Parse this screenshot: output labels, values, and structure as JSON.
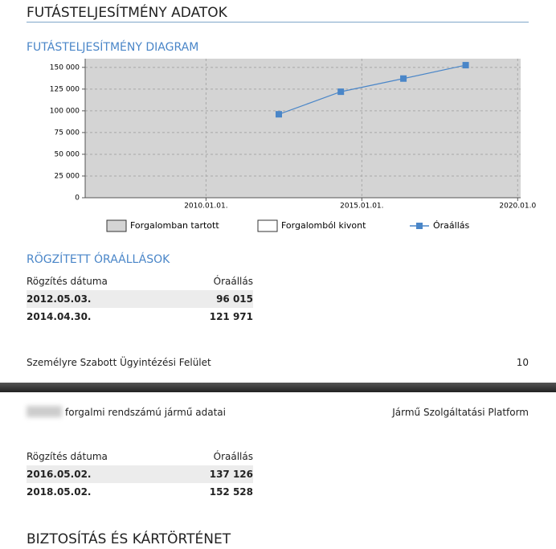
{
  "page1": {
    "title": "FUTÁSTELJESÍTMÉNY ADATOK",
    "diagram_heading": "FUTÁSTELJESÍTMÉNY DIAGRAM",
    "chart_data": {
      "type": "line",
      "bands": [
        {
          "name": "Forgalomban tartott",
          "color": "#d4d4d4"
        },
        {
          "name": "Forgalomból kivont",
          "color": "#ffffff"
        }
      ],
      "x": [
        "2012.05.03.",
        "2014.04.30.",
        "2016.05.02.",
        "2018.05.02."
      ],
      "series": [
        {
          "name": "Óraállás",
          "color": "#4a86c8",
          "values": [
            96015,
            121971,
            137126,
            152528
          ]
        }
      ],
      "xlim": [
        "2006.02.15.",
        "2020.02.05."
      ],
      "xticks": [
        {
          "value": "2010.01.01.",
          "label": "2010.01.01."
        },
        {
          "value": "2015.01.01.",
          "label": "2015.01.01."
        },
        {
          "value": "2020.01.01.",
          "label": "2020.01.0"
        }
      ],
      "ylim": [
        0,
        160000
      ],
      "yticks": [
        0,
        {
          "value": 25000,
          "label": "25 000"
        },
        {
          "value": 50000,
          "label": "50 000"
        },
        {
          "value": 75000,
          "label": "75 000"
        },
        {
          "value": 100000,
          "label": "100 000"
        },
        {
          "value": 125000,
          "label": "125 000"
        },
        {
          "value": 150000,
          "label": "150 000"
        }
      ],
      "grid": true
    },
    "records_heading": "RÖGZÍTETT ÓRAÁLLÁSOK",
    "table": {
      "columns": [
        "Rögzítés dátuma",
        "Óraállás"
      ],
      "rows": [
        [
          "2012.05.03.",
          "96 015"
        ],
        [
          "2014.04.30.",
          "121 971"
        ]
      ]
    },
    "footer": {
      "left": "Személyre Szabott Ügyintézési Felület",
      "page": "10"
    }
  },
  "page2": {
    "header": {
      "left": "forgalmi rendszámú jármű adatai",
      "right": "Jármű Szolgáltatási Platform"
    },
    "table": {
      "columns": [
        "Rögzítés dátuma",
        "Óraállás"
      ],
      "rows": [
        [
          "2016.05.02.",
          "137 126"
        ],
        [
          "2018.05.02.",
          "152 528"
        ]
      ]
    },
    "next_heading": "BIZTOSÍTÁS ÉS KÁRTÖRTÉNET"
  }
}
